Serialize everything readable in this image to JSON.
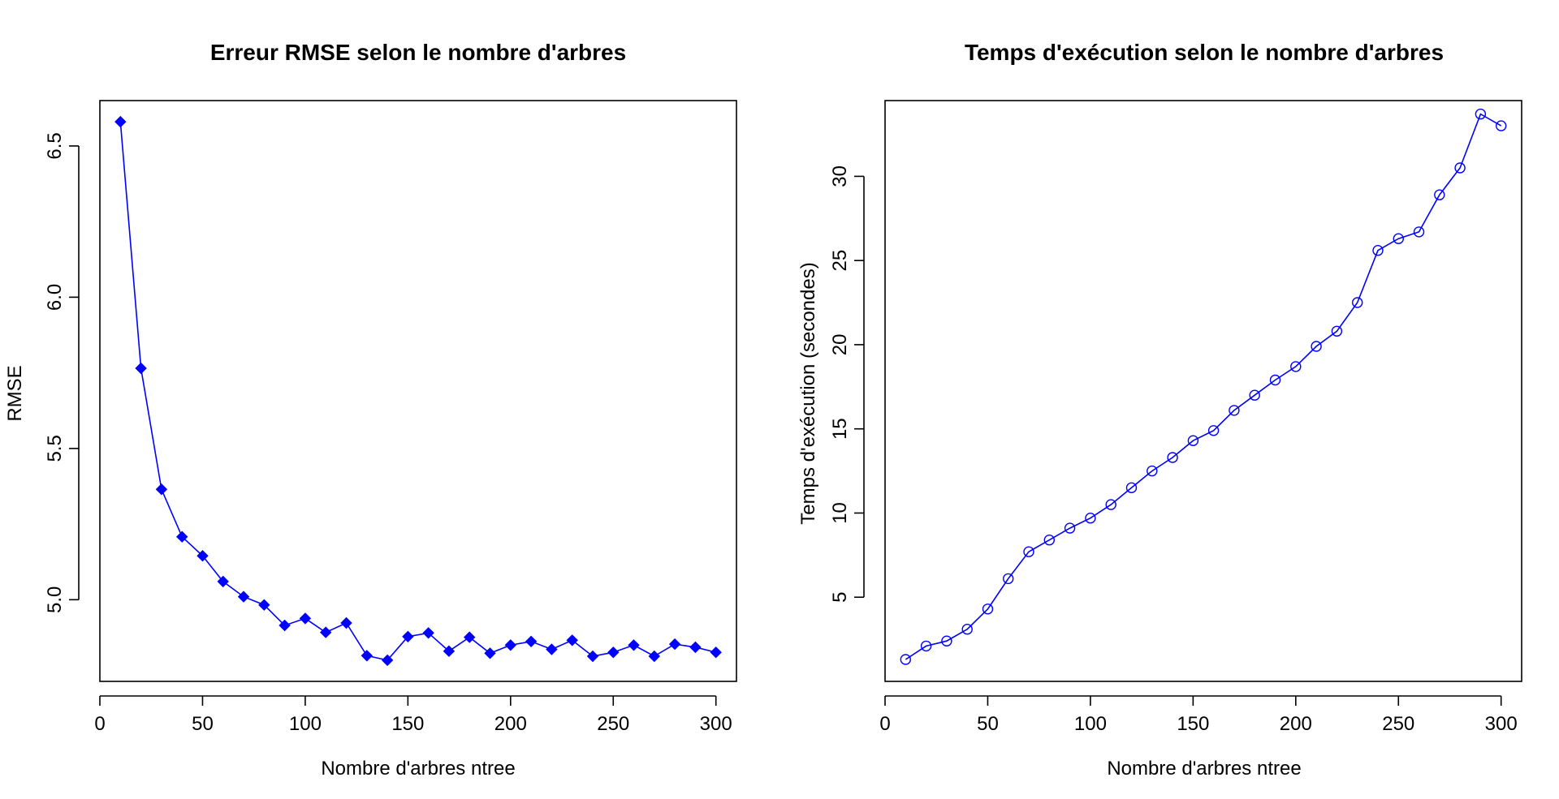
{
  "chart_data": [
    {
      "type": "line",
      "title": "Erreur RMSE selon le nombre d'arbres",
      "xlabel": "Nombre d'arbres ntree",
      "ylabel": "RMSE",
      "xlim": [
        0,
        310
      ],
      "ylim": [
        4.73,
        6.65
      ],
      "xticks": [
        0,
        50,
        100,
        150,
        200,
        250,
        300
      ],
      "yticks": [
        5.0,
        5.5,
        6.0,
        6.5
      ],
      "ytick_labels": [
        "5.0",
        "5.5",
        "6.0",
        "6.5"
      ],
      "grid": false,
      "marker": "filled-diamond",
      "color": "#0000ff",
      "x": [
        10,
        20,
        30,
        40,
        50,
        60,
        70,
        80,
        90,
        100,
        110,
        120,
        130,
        140,
        150,
        160,
        170,
        180,
        190,
        200,
        210,
        220,
        230,
        240,
        250,
        260,
        270,
        280,
        290,
        300
      ],
      "y": [
        6.58,
        5.765,
        5.365,
        5.208,
        5.145,
        5.06,
        5.01,
        4.983,
        4.915,
        4.938,
        4.892,
        4.923,
        4.815,
        4.8,
        4.878,
        4.89,
        4.83,
        4.876,
        4.823,
        4.85,
        4.862,
        4.836,
        4.866,
        4.813,
        4.826,
        4.85,
        4.813,
        4.853,
        4.843,
        4.826
      ]
    },
    {
      "type": "line",
      "title": "Temps d'exécution selon le nombre d'arbres",
      "xlabel": "Nombre d'arbres ntree",
      "ylabel": "Temps d'exécution (secondes)",
      "xlim": [
        0,
        310
      ],
      "ylim": [
        0,
        34.5
      ],
      "xticks": [
        0,
        50,
        100,
        150,
        200,
        250,
        300
      ],
      "yticks": [
        5,
        10,
        15,
        20,
        25,
        30
      ],
      "ytick_labels": [
        "5",
        "10",
        "15",
        "20",
        "25",
        "30"
      ],
      "grid": false,
      "marker": "open-circle",
      "color": "#0000ff",
      "x": [
        10,
        20,
        30,
        40,
        50,
        60,
        70,
        80,
        90,
        100,
        110,
        120,
        130,
        140,
        150,
        160,
        170,
        180,
        190,
        200,
        210,
        220,
        230,
        240,
        250,
        260,
        270,
        280,
        290,
        300
      ],
      "y": [
        1.3,
        2.1,
        2.4,
        3.1,
        4.3,
        6.1,
        7.7,
        8.4,
        9.1,
        9.7,
        10.5,
        11.5,
        12.5,
        13.3,
        14.3,
        14.9,
        16.1,
        17.0,
        17.9,
        18.7,
        19.9,
        20.8,
        22.5,
        25.6,
        26.3,
        26.7,
        28.9,
        30.5,
        33.7,
        33.0
      ]
    }
  ]
}
